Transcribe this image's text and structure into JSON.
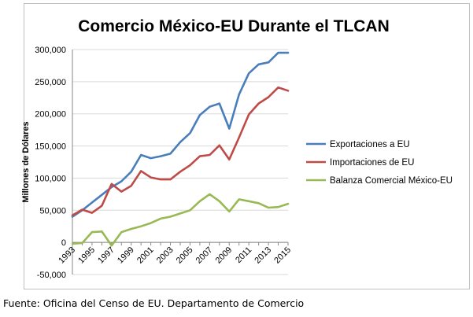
{
  "chart_data": {
    "type": "line",
    "title": "Comercio México-EU Durante el TLCAN",
    "xlabel": "",
    "ylabel": "Millones de Dólares",
    "ylim": [
      -50000,
      300000
    ],
    "yticks": [
      "-50,000",
      "0",
      "50,000",
      "100,000",
      "150,000",
      "200,000",
      "250,000",
      "300,000"
    ],
    "ytick_values": [
      -50000,
      0,
      50000,
      100000,
      150000,
      200000,
      250000,
      300000
    ],
    "x": [
      1993,
      1994,
      1995,
      1996,
      1997,
      1998,
      1999,
      2000,
      2001,
      2002,
      2003,
      2004,
      2005,
      2006,
      2007,
      2008,
      2009,
      2010,
      2011,
      2012,
      2013,
      2014,
      2015
    ],
    "xticks": [
      "1993",
      "1995",
      "1997",
      "1999",
      "2001",
      "2003",
      "2005",
      "2007",
      "2009",
      "2011",
      "2013",
      "2015"
    ],
    "xtick_values": [
      1993,
      1995,
      1997,
      1999,
      2001,
      2003,
      2005,
      2007,
      2009,
      2011,
      2013,
      2015
    ],
    "grid": "horizontal",
    "legend_position": "right",
    "series": [
      {
        "name": "Exportaciones a EU",
        "color": "#4a7ebb",
        "values": [
          40000,
          50000,
          62000,
          74000,
          86000,
          95000,
          110000,
          136000,
          131000,
          134000,
          138000,
          156000,
          170000,
          198000,
          211000,
          216000,
          177000,
          230000,
          263000,
          277000,
          280000,
          295000,
          295000
        ]
      },
      {
        "name": "Importaciones de EU",
        "color": "#be4b48",
        "values": [
          42000,
          51000,
          46000,
          57000,
          91000,
          79000,
          88000,
          111000,
          101000,
          98000,
          98000,
          110000,
          120000,
          134000,
          136000,
          151000,
          129000,
          163000,
          199000,
          216000,
          226000,
          241000,
          236000
        ]
      },
      {
        "name": "Balanza Comercial México-EU",
        "color": "#98b954",
        "values": [
          -2000,
          -1000,
          16000,
          17000,
          -5000,
          16000,
          21000,
          25000,
          30000,
          37000,
          40000,
          45000,
          50000,
          64000,
          75000,
          64000,
          48000,
          67000,
          64000,
          61000,
          54000,
          55000,
          60000
        ]
      }
    ]
  },
  "source_note": "Fuente: Oficina del Censo de EU. Departamento de Comercio"
}
